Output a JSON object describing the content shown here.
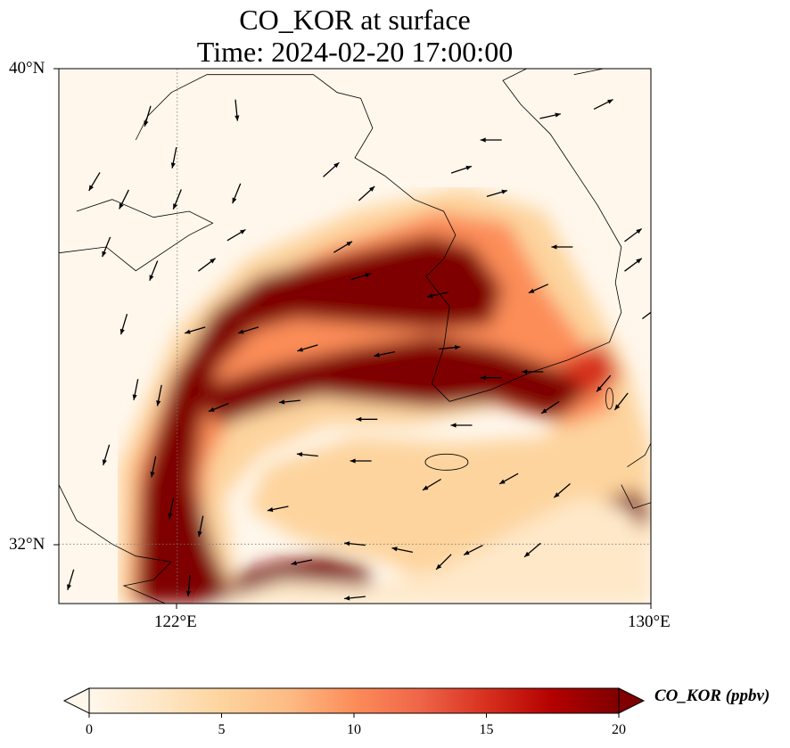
{
  "title": {
    "line1": "CO_KOR at surface",
    "line2": "Time: 2024-02-20 17:00:00"
  },
  "axes": {
    "lat_ticks": [
      "40°N",
      "32°N"
    ],
    "lon_ticks": [
      "122°E",
      "130°E"
    ],
    "lon_range": [
      120.0,
      130.0
    ],
    "lat_range": [
      31.0,
      40.0
    ],
    "gridlines": {
      "lon": 122,
      "lat": 32,
      "style": "dotted"
    }
  },
  "colorbar": {
    "label": "CO_KOR (ppbv)",
    "ticks": [
      "0",
      "5",
      "10",
      "15",
      "20"
    ],
    "tick_values": [
      0,
      5,
      10,
      15,
      20
    ],
    "colormap": "OrRd",
    "extend": "both",
    "colors": [
      "#fff7ec",
      "#fee8c8",
      "#fdd49e",
      "#fdbb84",
      "#fc8d59",
      "#ef6548",
      "#d7301f",
      "#b30000",
      "#7f0000"
    ]
  },
  "chart_data": {
    "type": "heatmap",
    "title": "CO_KOR at surface",
    "subtitle": "Time: 2024-02-20 17:00:00",
    "variable": "CO_KOR",
    "units": "ppbv",
    "value_range": [
      0,
      20
    ],
    "field_features": [
      {
        "name": "plume-north",
        "lon": [
          121.0,
          128.0
        ],
        "lat": [
          35.4,
          37.5
        ],
        "max": 20
      },
      {
        "name": "plume-central",
        "lon": [
          121.5,
          127.8
        ],
        "lat": [
          34.3,
          35.5
        ],
        "max": 20
      },
      {
        "name": "plume-west-arm",
        "lon": [
          121.0,
          123.2
        ],
        "lat": [
          31.0,
          35.0
        ],
        "max": 20
      },
      {
        "name": "plume-south-band",
        "lon": [
          122.5,
          129.5
        ],
        "lat": [
          31.0,
          33.3
        ],
        "max": 12
      },
      {
        "name": "hotspot-east",
        "lon": [
          129.2,
          130.0
        ],
        "lat": [
          32.2,
          32.9
        ],
        "max": 20
      }
    ],
    "wind_vectors": [
      {
        "lon": 121.5,
        "lat": 39.2,
        "u": -0.3,
        "v": -1
      },
      {
        "lon": 121.95,
        "lat": 38.5,
        "u": -0.2,
        "v": -1
      },
      {
        "lon": 123.0,
        "lat": 39.3,
        "u": 0.1,
        "v": -1
      },
      {
        "lon": 124.6,
        "lat": 38.3,
        "u": 1,
        "v": 0.9
      },
      {
        "lon": 125.2,
        "lat": 37.9,
        "u": 1,
        "v": 0.9
      },
      {
        "lon": 126.8,
        "lat": 38.3,
        "u": 0.6,
        "v": 0.2
      },
      {
        "lon": 127.3,
        "lat": 38.8,
        "u": -1,
        "v": 0
      },
      {
        "lon": 128.3,
        "lat": 39.2,
        "u": 0.9,
        "v": 0.2
      },
      {
        "lon": 129.2,
        "lat": 39.4,
        "u": 0.8,
        "v": 0.4
      },
      {
        "lon": 120.6,
        "lat": 38.1,
        "u": -0.6,
        "v": -1
      },
      {
        "lon": 121.1,
        "lat": 37.8,
        "u": -0.5,
        "v": -1
      },
      {
        "lon": 122.0,
        "lat": 37.8,
        "u": -0.4,
        "v": -1
      },
      {
        "lon": 123.0,
        "lat": 37.9,
        "u": -0.4,
        "v": -1
      },
      {
        "lon": 124.8,
        "lat": 37.0,
        "u": 0.5,
        "v": 0.3
      },
      {
        "lon": 127.4,
        "lat": 37.9,
        "u": 1,
        "v": 0.3
      },
      {
        "lon": 128.5,
        "lat": 37.0,
        "u": -0.8,
        "v": 0
      },
      {
        "lon": 129.7,
        "lat": 37.2,
        "u": 0.8,
        "v": 0.6
      },
      {
        "lon": 129.7,
        "lat": 36.7,
        "u": 0.8,
        "v": 0.6
      },
      {
        "lon": 120.8,
        "lat": 37.0,
        "u": -0.4,
        "v": -1
      },
      {
        "lon": 121.6,
        "lat": 36.6,
        "u": -0.4,
        "v": -1
      },
      {
        "lon": 122.5,
        "lat": 36.7,
        "u": 0.4,
        "v": 0.3
      },
      {
        "lon": 123.0,
        "lat": 37.2,
        "u": 1,
        "v": 0.6
      },
      {
        "lon": 125.1,
        "lat": 36.5,
        "u": 1,
        "v": 0.3
      },
      {
        "lon": 126.4,
        "lat": 36.2,
        "u": -0.9,
        "v": -0.2
      },
      {
        "lon": 128.1,
        "lat": 36.3,
        "u": -0.9,
        "v": -0.4
      },
      {
        "lon": 130.0,
        "lat": 35.9,
        "u": 0.8,
        "v": 0.6
      },
      {
        "lon": 121.1,
        "lat": 35.7,
        "u": -0.3,
        "v": -1
      },
      {
        "lon": 122.3,
        "lat": 35.6,
        "u": -1,
        "v": -0.3
      },
      {
        "lon": 123.2,
        "lat": 35.6,
        "u": -1,
        "v": -0.3
      },
      {
        "lon": 124.2,
        "lat": 35.3,
        "u": -1,
        "v": -0.3
      },
      {
        "lon": 125.5,
        "lat": 35.2,
        "u": -1,
        "v": -0.2
      },
      {
        "lon": 126.6,
        "lat": 35.3,
        "u": 1,
        "v": 0.1
      },
      {
        "lon": 127.3,
        "lat": 34.8,
        "u": -1,
        "v": 0
      },
      {
        "lon": 128.0,
        "lat": 34.9,
        "u": -1,
        "v": 0
      },
      {
        "lon": 129.2,
        "lat": 34.7,
        "u": -0.6,
        "v": -0.7
      },
      {
        "lon": 121.3,
        "lat": 34.6,
        "u": -0.2,
        "v": -1
      },
      {
        "lon": 121.7,
        "lat": 34.5,
        "u": -0.2,
        "v": -1
      },
      {
        "lon": 122.7,
        "lat": 34.3,
        "u": -1,
        "v": -0.4
      },
      {
        "lon": 123.9,
        "lat": 34.4,
        "u": -1,
        "v": -0.1
      },
      {
        "lon": 125.2,
        "lat": 34.1,
        "u": -1,
        "v": 0
      },
      {
        "lon": 126.8,
        "lat": 34.0,
        "u": -1,
        "v": 0
      },
      {
        "lon": 128.3,
        "lat": 34.3,
        "u": -0.9,
        "v": -0.6
      },
      {
        "lon": 129.5,
        "lat": 34.4,
        "u": -0.7,
        "v": -0.9
      },
      {
        "lon": 120.8,
        "lat": 33.5,
        "u": -0.3,
        "v": -1
      },
      {
        "lon": 121.6,
        "lat": 33.3,
        "u": -0.2,
        "v": -1
      },
      {
        "lon": 124.2,
        "lat": 33.5,
        "u": -1,
        "v": 0.1
      },
      {
        "lon": 125.1,
        "lat": 33.4,
        "u": -1,
        "v": 0
      },
      {
        "lon": 126.3,
        "lat": 33.0,
        "u": -1,
        "v": -0.6
      },
      {
        "lon": 127.6,
        "lat": 33.1,
        "u": -0.9,
        "v": -0.5
      },
      {
        "lon": 128.5,
        "lat": 32.9,
        "u": -0.7,
        "v": -0.6
      },
      {
        "lon": 121.9,
        "lat": 32.6,
        "u": -0.2,
        "v": -1
      },
      {
        "lon": 122.4,
        "lat": 32.3,
        "u": -0.2,
        "v": -1
      },
      {
        "lon": 123.7,
        "lat": 32.6,
        "u": -1,
        "v": -0.2
      },
      {
        "lon": 125.0,
        "lat": 32.0,
        "u": -1,
        "v": 0.1
      },
      {
        "lon": 125.8,
        "lat": 31.9,
        "u": -1,
        "v": 0.2
      },
      {
        "lon": 125.0,
        "lat": 31.1,
        "u": -1,
        "v": -0.1
      },
      {
        "lon": 126.5,
        "lat": 31.7,
        "u": -0.6,
        "v": -0.6
      },
      {
        "lon": 128.0,
        "lat": 31.9,
        "u": -0.7,
        "v": -0.6
      },
      {
        "lon": 127.0,
        "lat": 31.9,
        "u": -0.8,
        "v": -0.4
      },
      {
        "lon": 124.1,
        "lat": 31.7,
        "u": -1,
        "v": -0.2
      },
      {
        "lon": 120.2,
        "lat": 31.4,
        "u": -0.3,
        "v": -1
      },
      {
        "lon": 122.2,
        "lat": 31.3,
        "u": -0.1,
        "v": -1
      }
    ]
  }
}
